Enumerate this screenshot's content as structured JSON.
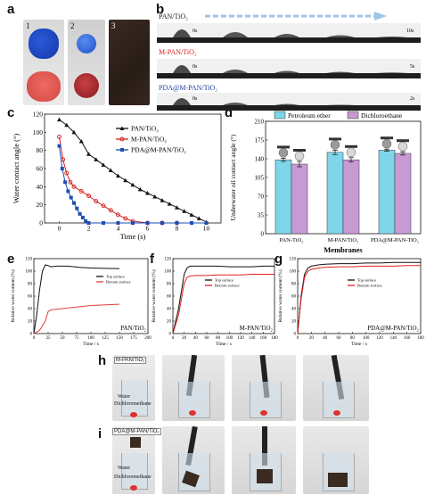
{
  "panel_labels": {
    "a": "a",
    "b": "b",
    "c": "c",
    "d": "d",
    "e": "e",
    "f": "f",
    "g": "g",
    "h": "h",
    "i": "i"
  },
  "panel_a": {
    "numbers": [
      "1",
      "2",
      "3"
    ]
  },
  "panel_b": {
    "rows": [
      {
        "name": "PAN/TiO₂",
        "color": "#1a1a1a",
        "t0": "0s",
        "tend": "10s"
      },
      {
        "name": "M-PAN/TiO₂",
        "color": "#d42020",
        "t0": "0s",
        "tend": "5s"
      },
      {
        "name": "PDA@M-PAN/TiO₂",
        "color": "#1d3f9a",
        "t0": "0s",
        "tend": "2s"
      }
    ]
  },
  "chart_data": [
    {
      "id": "c",
      "type": "line",
      "xlabel": "Time (s)",
      "ylabel": "Water contact angle (°)",
      "xlim": [
        -1,
        11
      ],
      "ylim": [
        0,
        120
      ],
      "xticks": [
        0,
        2,
        4,
        6,
        8,
        10
      ],
      "yticks": [
        0,
        20,
        40,
        60,
        80,
        100,
        120
      ],
      "legend_position": "top-right",
      "series": [
        {
          "name": "PAN/TiO₂",
          "color": "#111111",
          "marker": "triangle",
          "x": [
            0,
            0.5,
            1,
            1.5,
            2,
            2.5,
            3,
            3.5,
            4,
            4.5,
            5,
            5.5,
            6,
            6.5,
            7,
            7.5,
            8,
            8.5,
            9,
            9.5,
            10
          ],
          "y": [
            114,
            108,
            100,
            90,
            76,
            70,
            64,
            58,
            52,
            47,
            42,
            37,
            33,
            29,
            25,
            21,
            17,
            13,
            9,
            5,
            1
          ]
        },
        {
          "name": "M-PAN/TiO₂",
          "color": "#d42020",
          "marker": "circle",
          "x": [
            0,
            0.25,
            0.5,
            0.75,
            1,
            1.5,
            2,
            2.5,
            3,
            3.5,
            4,
            4.5,
            5,
            6,
            7,
            8
          ],
          "y": [
            95,
            70,
            55,
            45,
            40,
            35,
            30,
            24,
            19,
            14,
            9,
            5,
            2,
            0,
            0,
            0
          ]
        },
        {
          "name": "PDA@M-PAN/TiO₂",
          "color": "#1d4fb0",
          "marker": "square",
          "x": [
            0,
            0.2,
            0.4,
            0.6,
            0.8,
            1,
            1.2,
            1.4,
            1.6,
            1.8,
            2,
            3,
            4,
            5,
            6,
            7,
            8,
            9,
            10
          ],
          "y": [
            85,
            60,
            45,
            35,
            28,
            22,
            16,
            10,
            6,
            2,
            0,
            0,
            0,
            0,
            0,
            0,
            0,
            0,
            0
          ]
        }
      ]
    },
    {
      "id": "d",
      "type": "bar",
      "xlabel": "Membranes",
      "ylabel": "Underwater oil contact angle (°)",
      "ylim": [
        0,
        210
      ],
      "yticks": [
        0,
        35,
        70,
        105,
        140,
        175,
        210
      ],
      "categories": [
        "PAN-TiO₂",
        "M-PAN/TiO₂",
        "PDA@M-PAN-TiO₂"
      ],
      "series": [
        {
          "name": "Petroleum ether",
          "color": "#7fd6ea",
          "values": [
            138,
            152,
            156
          ],
          "errors": [
            3,
            4,
            2
          ]
        },
        {
          "name": "Dichloroethane",
          "color": "#c89ad4",
          "values": [
            130,
            138,
            150
          ],
          "errors": [
            5,
            4,
            3
          ]
        }
      ]
    },
    {
      "id": "e",
      "type": "line",
      "annotation": "PAN/TiO₂",
      "xlabel": "Time / s",
      "ylabel": "Relative water content (%)",
      "xlim": [
        0,
        200
      ],
      "ylim": [
        0,
        120
      ],
      "xticks": [
        0,
        25,
        50,
        75,
        100,
        125,
        150,
        175,
        200
      ],
      "yticks": [
        0,
        20,
        40,
        60,
        80,
        100,
        120
      ],
      "series": [
        {
          "name": "Top surface",
          "color": "#111111",
          "x": [
            0,
            5,
            10,
            15,
            20,
            25,
            30,
            40,
            60,
            80,
            100,
            150
          ],
          "y": [
            0,
            30,
            70,
            100,
            110,
            109,
            107,
            108,
            108,
            106,
            105,
            104
          ]
        },
        {
          "name": "Bottom surface",
          "color": "#e04040",
          "x": [
            0,
            10,
            20,
            25,
            30,
            50,
            70,
            100,
            150
          ],
          "y": [
            0,
            5,
            20,
            35,
            38,
            40,
            42,
            45,
            47
          ]
        }
      ]
    },
    {
      "id": "f",
      "type": "line",
      "annotation": "M-PAN/TiO₂",
      "xlabel": "Time / s",
      "ylabel": "Relative water content (%)",
      "xlim": [
        0,
        180
      ],
      "ylim": [
        0,
        120
      ],
      "xticks": [
        0,
        20,
        40,
        60,
        80,
        100,
        120,
        140,
        160,
        180
      ],
      "yticks": [
        0,
        20,
        40,
        60,
        80,
        100,
        120
      ],
      "series": [
        {
          "name": "Top surface",
          "color": "#111111",
          "x": [
            0,
            10,
            20,
            25,
            30,
            40,
            60,
            80,
            100,
            120,
            140,
            160,
            180
          ],
          "y": [
            0,
            40,
            95,
            105,
            108,
            108,
            108,
            108,
            107,
            107,
            107,
            108,
            108
          ]
        },
        {
          "name": "Bottom surface",
          "color": "#e02020",
          "x": [
            0,
            10,
            20,
            25,
            30,
            40,
            60,
            80,
            100,
            120,
            140,
            160,
            180
          ],
          "y": [
            0,
            30,
            80,
            90,
            92,
            93,
            93,
            94,
            94,
            94,
            95,
            95,
            95
          ]
        }
      ]
    },
    {
      "id": "g",
      "type": "line",
      "annotation": "PDA@M-PAN/TiO₂",
      "xlabel": "Time / s",
      "ylabel": "Relative water content (%)",
      "xlim": [
        0,
        180
      ],
      "ylim": [
        0,
        120
      ],
      "xticks": [
        0,
        20,
        40,
        60,
        80,
        100,
        120,
        140,
        160,
        180
      ],
      "yticks": [
        0,
        20,
        40,
        60,
        80,
        100,
        120
      ],
      "series": [
        {
          "name": "Top surface",
          "color": "#111111",
          "x": [
            0,
            5,
            10,
            15,
            20,
            30,
            40,
            60,
            80,
            100,
            120,
            140,
            160,
            180
          ],
          "y": [
            0,
            60,
            95,
            105,
            108,
            110,
            111,
            112,
            112,
            113,
            113,
            114,
            114,
            114
          ]
        },
        {
          "name": "Bottom surface",
          "color": "#e02020",
          "x": [
            0,
            5,
            10,
            15,
            20,
            30,
            40,
            60,
            80,
            100,
            120,
            140,
            160,
            180
          ],
          "y": [
            0,
            55,
            90,
            100,
            103,
            105,
            106,
            107,
            107,
            108,
            108,
            108,
            109,
            109
          ]
        }
      ]
    }
  ],
  "panel_h": {
    "tag": "M-PAN/TiO₂",
    "water": "Water",
    "oil": "Dichloromethane"
  },
  "panel_i": {
    "tag": "PDA@M-PAN/TiO₂",
    "water": "Water",
    "oil": "Dichloromethane"
  },
  "colors": {
    "accent_arrow": "#9fc3ea",
    "bar_a": "#7fd6ea",
    "bar_b": "#c89ad4"
  }
}
